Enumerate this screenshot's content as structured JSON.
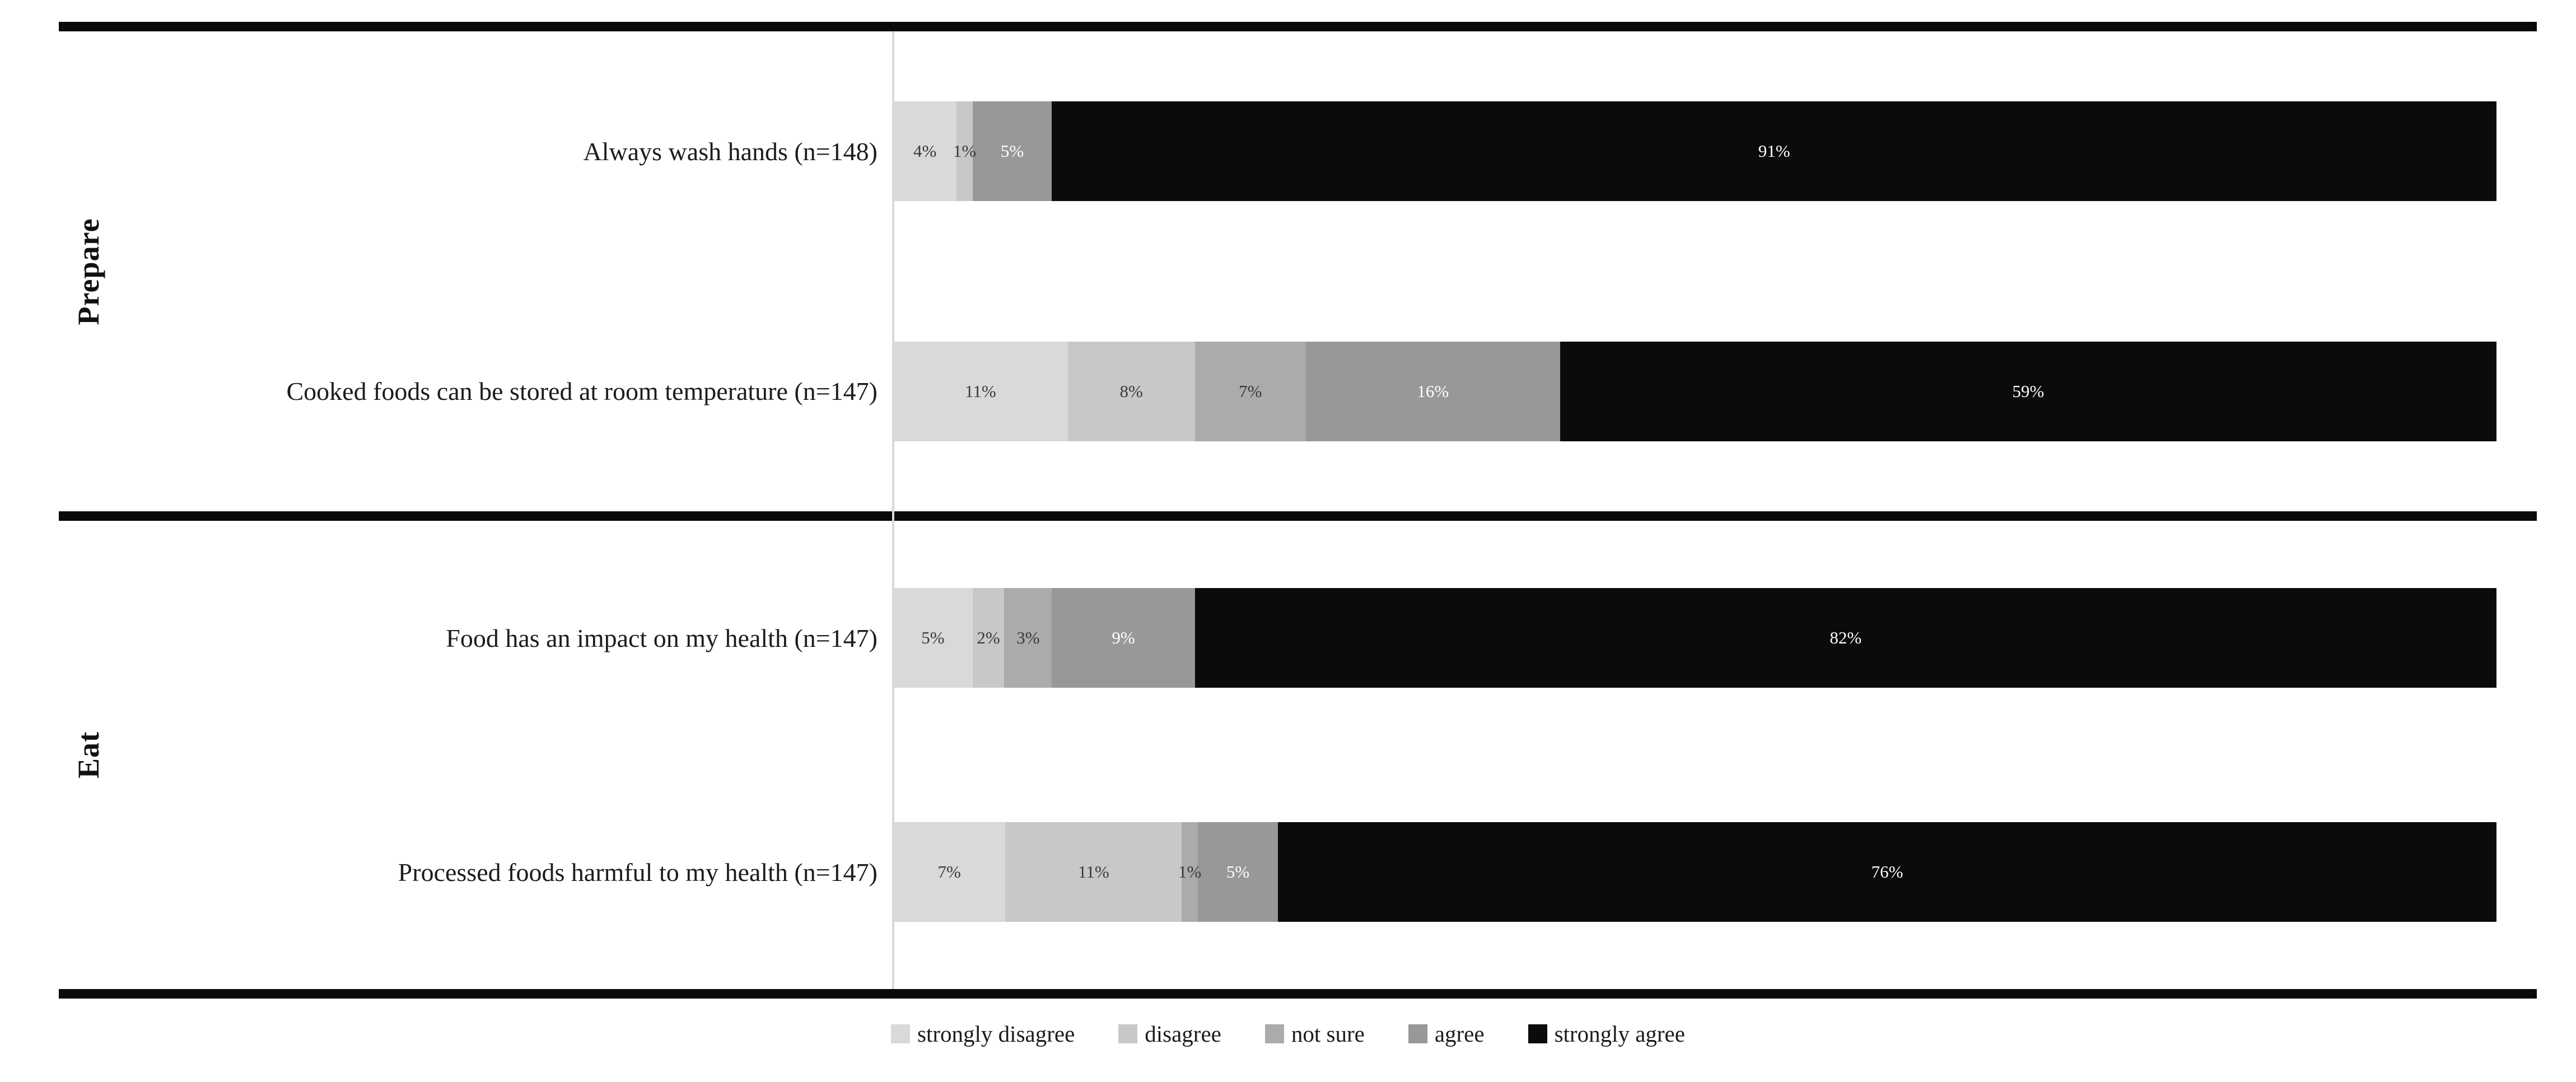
{
  "chart_data": {
    "type": "bar",
    "orientation": "horizontal",
    "stacked_100": true,
    "grid": false,
    "legend_position": "bottom",
    "xlim": [
      0,
      100
    ],
    "value_suffix": "%",
    "series": [
      {
        "name": "strongly disagree",
        "color": "#d9d9d9",
        "label_color": "#3a3a3a"
      },
      {
        "name": "disagree",
        "color": "#c8c8c8",
        "label_color": "#3a3a3a"
      },
      {
        "name": "not sure",
        "color": "#ababab",
        "label_color": "#3a3a3a"
      },
      {
        "name": "agree",
        "color": "#989898",
        "label_color": "#ffffff"
      },
      {
        "name": "strongly agree",
        "color": "#0b0b0b",
        "label_color": "#ffffff"
      }
    ],
    "groups": [
      {
        "category": "Prepare",
        "rows": [
          {
            "label": "Always wash hands (n=148)",
            "values": [
              4,
              1,
              0,
              5,
              91
            ]
          },
          {
            "label": "Cooked foods can be stored at room temperature (n=147)",
            "values": [
              11,
              8,
              7,
              16,
              59
            ]
          }
        ]
      },
      {
        "category": "Eat",
        "rows": [
          {
            "label": "Food has an impact on my health (n=147)",
            "values": [
              5,
              2,
              3,
              9,
              82
            ]
          },
          {
            "label": "Processed foods harmful to my health (n=147)",
            "values": [
              7,
              11,
              1,
              5,
              76
            ]
          }
        ]
      }
    ]
  },
  "style_colors": {
    "rule_color": "#0a0a0a",
    "axis_color": "#d9d9d9",
    "background": "#ffffff"
  }
}
